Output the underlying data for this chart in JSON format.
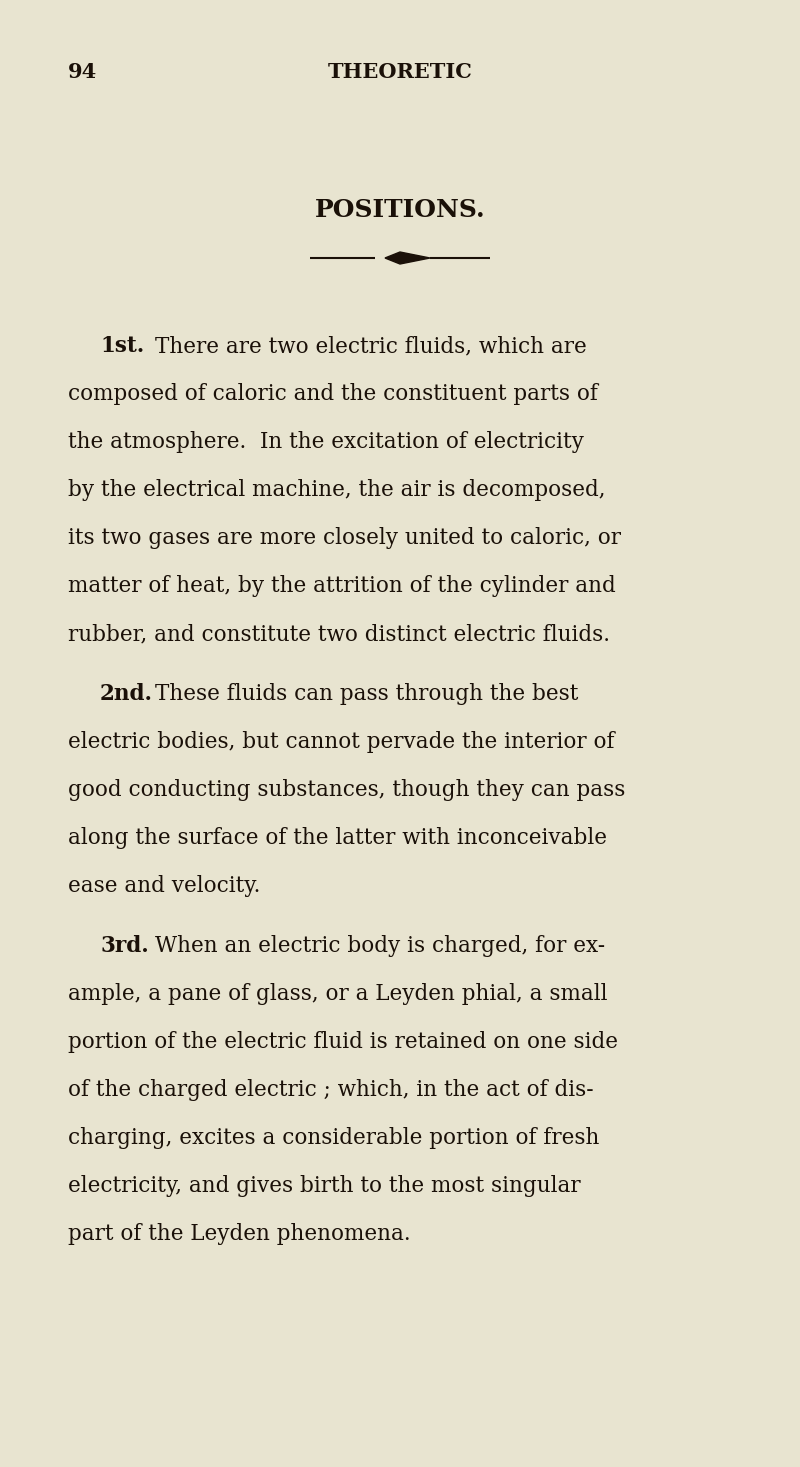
{
  "bg_color": "#e8e4d0",
  "text_color": "#1a1008",
  "page_number": "94",
  "header": "THEORETIC",
  "section_title": "POSITIONS.",
  "paragraph1_label": "1st.",
  "paragraph2_label": "2nd.",
  "paragraph3_label": "3rd.",
  "p1_lines": [
    [
      "There are two electric fluids, which are",
      true
    ],
    [
      "composed of caloric and the constituent parts of",
      false
    ],
    [
      "the atmosphere.  In the excitation of electricity",
      false
    ],
    [
      "by the electrical machine, the air is decomposed,",
      false
    ],
    [
      "its two gases are more closely united to caloric, or",
      false
    ],
    [
      "matter of heat, by the attrition of the cylinder and",
      false
    ],
    [
      "rubber, and constitute two distinct electric fluids.",
      false
    ]
  ],
  "p2_lines": [
    [
      "These fluids can pass through the best",
      true
    ],
    [
      "electric bodies, but cannot pervade the interior of",
      false
    ],
    [
      "good conducting substances, though they can pass",
      false
    ],
    [
      "along the surface of the latter with inconceivable",
      false
    ],
    [
      "ease and velocity.",
      false
    ]
  ],
  "p3_lines": [
    [
      "When an electric body is charged, for ex-",
      true
    ],
    [
      "ample, a pane of glass, or a Leyden phial, a small",
      false
    ],
    [
      "portion of the electric fluid is retained on one side",
      false
    ],
    [
      "of the charged electric ; which, in the act of dis-",
      false
    ],
    [
      "charging, excites a considerable portion of fresh",
      false
    ],
    [
      "electricity, and gives birth to the most singular",
      false
    ],
    [
      "part of the Leyden phenomena.",
      false
    ]
  ],
  "figsize": [
    8.0,
    14.67
  ],
  "dpi": 100
}
